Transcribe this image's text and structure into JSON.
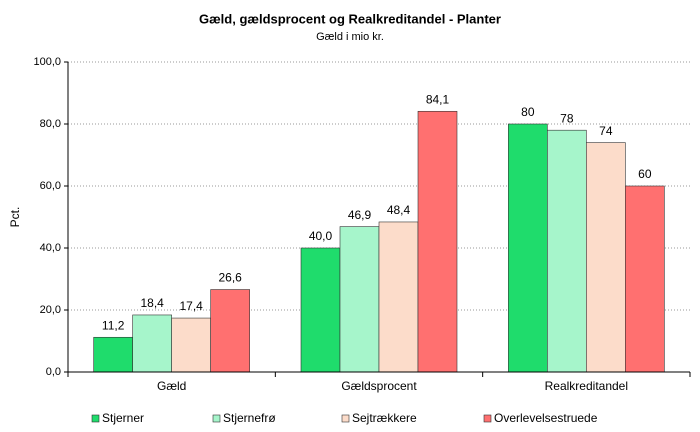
{
  "chart_data": {
    "type": "bar",
    "title": "Gæld, gældsprocent og Realkreditandel - Planter",
    "subtitle": "Gæld i mio kr.",
    "y_label": "Pct.",
    "categories": [
      "Gæld",
      "Gældsprocent",
      "Realkreditandel"
    ],
    "series": [
      {
        "name": "Stjerner",
        "color": "#1fdc6c",
        "values": [
          11.2,
          40.0,
          80
        ],
        "value_labels": [
          "11,2",
          "40,0",
          "80"
        ]
      },
      {
        "name": "Stjernefrø",
        "color": "#a6f5cb",
        "values": [
          18.4,
          46.9,
          78
        ],
        "value_labels": [
          "18,4",
          "46,9",
          "78"
        ]
      },
      {
        "name": "Sejtrækkere",
        "color": "#fcdcca",
        "values": [
          17.4,
          48.4,
          74
        ],
        "value_labels": [
          "17,4",
          "48,4",
          "74"
        ]
      },
      {
        "name": "Overlevelsestruede",
        "color": "#ff7070",
        "values": [
          26.6,
          84.1,
          60
        ],
        "value_labels": [
          "26,6",
          "84,1",
          "60"
        ]
      }
    ],
    "ylim": [
      0,
      100
    ],
    "yticks": [
      {
        "value": 0,
        "label": "0,0"
      },
      {
        "value": 20,
        "label": "20,0"
      },
      {
        "value": 40,
        "label": "40,0"
      },
      {
        "value": 60,
        "label": "60,0"
      },
      {
        "value": 80,
        "label": "80,0"
      },
      {
        "value": 100,
        "label": "100,0"
      }
    ],
    "grid": true,
    "legend": "bottom"
  }
}
